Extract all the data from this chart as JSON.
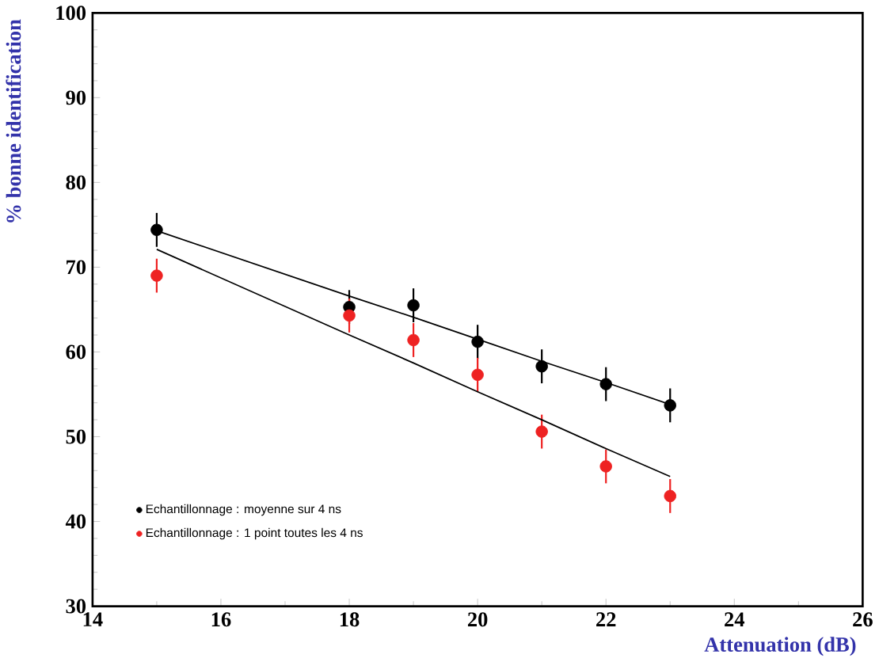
{
  "chart_data": {
    "type": "scatter",
    "xlabel": "Attenuation (dB)",
    "ylabel": "% bonne identification",
    "x": [
      15,
      18,
      19,
      20,
      21,
      22,
      23
    ],
    "series": [
      {
        "name": "Echantillonnage : moyenne sur 4 ns",
        "color": "#000000",
        "values": [
          74.4,
          65.3,
          65.5,
          61.2,
          58.3,
          56.2,
          53.7
        ],
        "errors": [
          2,
          2,
          2,
          2,
          2,
          2,
          2
        ],
        "marker": "circle"
      },
      {
        "name": "Echantillonnage : 1 point toutes les 4 ns",
        "color": "#ee2222",
        "values": [
          69.0,
          64.3,
          61.4,
          57.3,
          50.6,
          46.5,
          43.0
        ],
        "errors": [
          2,
          2,
          2,
          2,
          2,
          2,
          2
        ],
        "marker": "circle"
      },
      {
        "type": "line",
        "color": "#000000",
        "marker": "none",
        "values": [
          74.3,
          66.6,
          64.1,
          61.5,
          58.9,
          56.4,
          53.8
        ]
      },
      {
        "type": "line",
        "color": "#000000",
        "marker": "none",
        "values": [
          72.1,
          62.0,
          58.7,
          55.3,
          52.0,
          48.6,
          45.3
        ]
      }
    ],
    "xlim": [
      14,
      26
    ],
    "xticks": [
      14,
      16,
      18,
      20,
      22,
      24,
      26
    ],
    "ylim": [
      30,
      100
    ],
    "yticks": [
      30,
      40,
      50,
      60,
      70,
      80,
      90,
      100
    ],
    "legend": "bottom left",
    "grid": false
  }
}
